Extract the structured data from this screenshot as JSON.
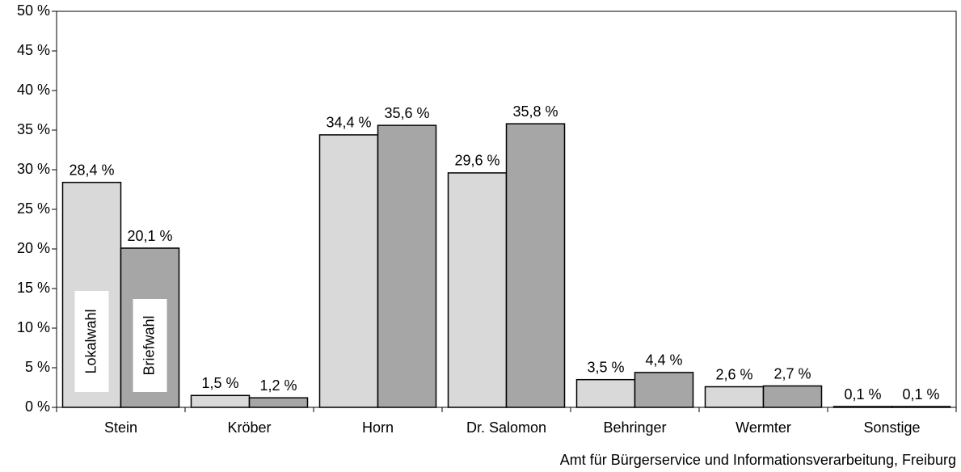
{
  "chart_data": {
    "type": "bar",
    "source": "Amt für Bürgerservice und Informationsverarbeitung, Freiburg",
    "categories": [
      "Stein",
      "Kröber",
      "Horn",
      "Dr. Salomon",
      "Behringer",
      "Wermter",
      "Sonstige"
    ],
    "series": [
      {
        "name": "Lokalwahl",
        "color": "#d9d9d9",
        "values": [
          28.4,
          1.5,
          34.4,
          29.6,
          3.5,
          2.6,
          0.1
        ],
        "value_labels": [
          "28,4 %",
          "1,5 %",
          "34,4 %",
          "29,6 %",
          "3,5 %",
          "2,6 %",
          "0,1 %"
        ]
      },
      {
        "name": "Briefwahl",
        "color": "#a6a6a6",
        "values": [
          20.1,
          1.2,
          35.6,
          35.8,
          4.4,
          2.7,
          0.1
        ],
        "value_labels": [
          "20,1 %",
          "1,2 %",
          "35,6 %",
          "35,8 %",
          "4,4 %",
          "2,7 %",
          "0,1 %"
        ]
      }
    ],
    "ylim": [
      0,
      50
    ],
    "yticks": [
      {
        "value": 0,
        "label": "0 %"
      },
      {
        "value": 5,
        "label": "5 %"
      },
      {
        "value": 10,
        "label": "10 %"
      },
      {
        "value": 15,
        "label": "15 %"
      },
      {
        "value": 20,
        "label": "20 %"
      },
      {
        "value": 25,
        "label": "25 %"
      },
      {
        "value": 30,
        "label": "30 %"
      },
      {
        "value": 35,
        "label": "35 %"
      },
      {
        "value": 40,
        "label": "40 %"
      },
      {
        "value": 45,
        "label": "45 %"
      },
      {
        "value": 50,
        "label": "50 %"
      }
    ],
    "grid": false
  }
}
